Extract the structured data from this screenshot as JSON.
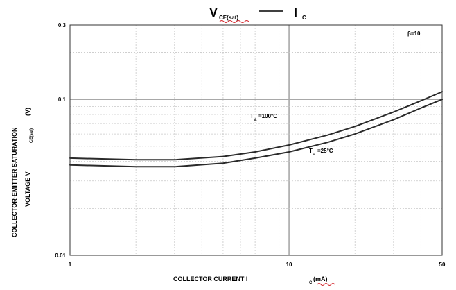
{
  "title": {
    "left_main": "V",
    "left_sub": "CE(sat)",
    "dash": "—",
    "right_main": "I",
    "right_sub": "C"
  },
  "axes": {
    "xlabel_prefix": "COLLECTOR CURRENT I",
    "xlabel_sub": "C",
    "xlabel_unit": "(mA)",
    "ylabel_line1": "COLLECTOR-EMITTER SATURATION",
    "ylabel_line2_prefix": "VOLTAGE   V",
    "ylabel_line2_sub": "CE(sat)",
    "ylabel_line2_unit": "(V)"
  },
  "annotations": {
    "beta": "β=10",
    "t100_main": "T",
    "t100_sub": "a",
    "t100_rest": "=100°C",
    "t25_main": "T",
    "t25_sub": "a",
    "t25_rest": "=25°C"
  },
  "colors": {
    "curve": "#2a2a2a",
    "grid_minor": "#c8c8c8",
    "grid_major": "#a8a8a8",
    "frame": "#333333",
    "squiggle": "#d2232a"
  },
  "chart_data": {
    "type": "line",
    "title": "VCE(sat) — IC",
    "xlabel": "COLLECTOR CURRENT IC(mA)",
    "ylabel": "COLLECTOR-EMITTER SATURATION VOLTAGE VCE(sat) (V)",
    "x_scale": "log",
    "y_scale": "log",
    "xlim": [
      1,
      50
    ],
    "ylim": [
      0.01,
      0.3
    ],
    "x_ticks": [
      1,
      10,
      50
    ],
    "x_tick_labels": [
      "1",
      "10",
      "50"
    ],
    "y_ticks": [
      0.01,
      0.1,
      0.3
    ],
    "y_tick_labels": [
      "0.01",
      "0.1",
      "0.3"
    ],
    "grid": true,
    "annotations": [
      "β=10",
      "Ta=100°C",
      "Ta=25°C"
    ],
    "series": [
      {
        "name": "Ta=100°C",
        "x": [
          1,
          2,
          3,
          5,
          7,
          10,
          15,
          20,
          30,
          40,
          50
        ],
        "y": [
          0.042,
          0.041,
          0.041,
          0.043,
          0.046,
          0.051,
          0.059,
          0.067,
          0.083,
          0.098,
          0.112
        ]
      },
      {
        "name": "Ta=25°C",
        "x": [
          1,
          2,
          3,
          5,
          7,
          10,
          15,
          20,
          30,
          40,
          50
        ],
        "y": [
          0.038,
          0.037,
          0.037,
          0.039,
          0.042,
          0.046,
          0.053,
          0.06,
          0.074,
          0.088,
          0.1
        ]
      }
    ]
  }
}
